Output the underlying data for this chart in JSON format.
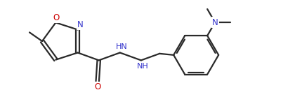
{
  "bg_color": "#ffffff",
  "line_color": "#2a2a2a",
  "atom_colors": {
    "O": "#cc0000",
    "N": "#3333cc",
    "C": "#2a2a2a"
  },
  "line_width": 1.6,
  "font_size": 8.5,
  "fig_width": 4.2,
  "fig_height": 1.39,
  "dpi": 100
}
